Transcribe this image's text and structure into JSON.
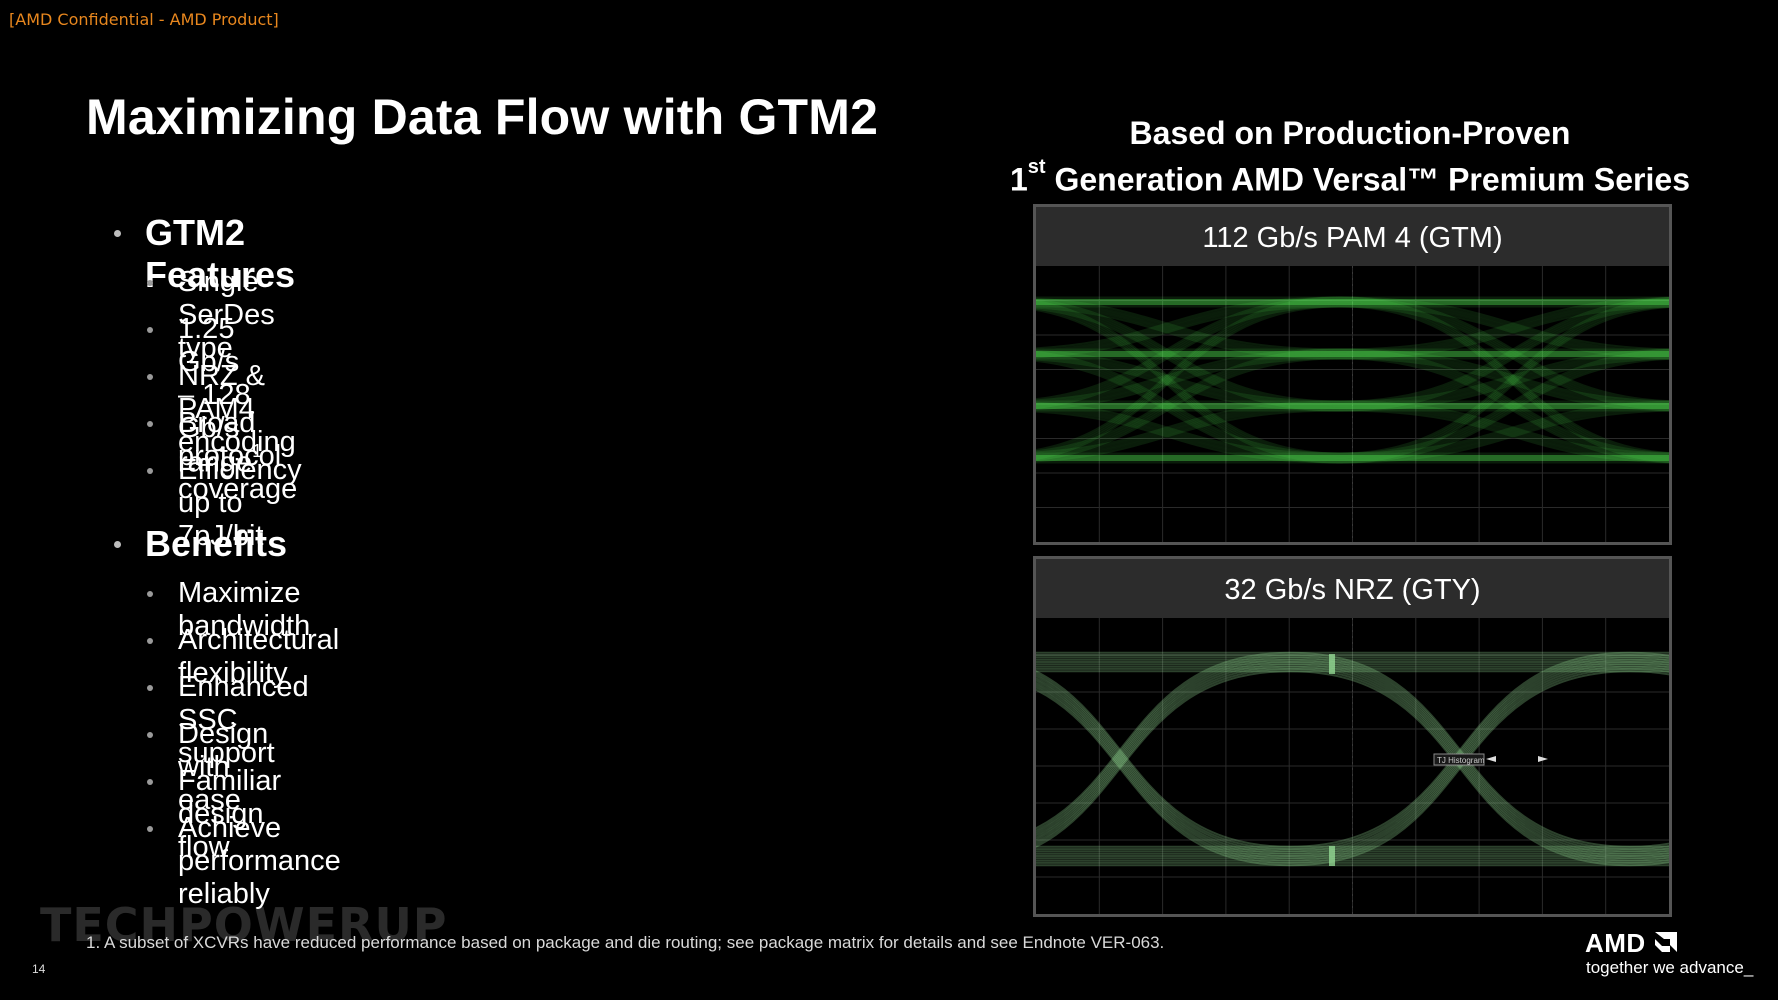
{
  "header": {
    "confidential": "[AMD Confidential - AMD Product]"
  },
  "slide": {
    "title": "Maximizing Data Flow with GTM2",
    "page_number": "14"
  },
  "left": {
    "sections": [
      {
        "heading": "GTM2 Features",
        "items": [
          "Single SerDes type",
          "1.25 Gb/s – 128 Gb/s range",
          "NRZ & PAM4 encoding",
          "Broad protocol coverage",
          "Efficiency up to 7pJ/bit"
        ],
        "range_superscript": "1"
      },
      {
        "heading": "Benefits",
        "items": [
          "Maximize bandwidth",
          "Architectural flexibility",
          "Enhanced SSC support",
          "Design with ease",
          "Familiar design flow",
          "Achieve performance reliably"
        ]
      }
    ]
  },
  "right": {
    "title_line1": "Based on Production-Proven",
    "title_line2_prefix": "1",
    "title_line2_sup": "st",
    "title_line2_rest": " Generation AMD Versal™ Premium Series",
    "panels": [
      {
        "label": "112 Gb/s PAM 4  (GTM)",
        "trace_color": "#5dff5d"
      },
      {
        "label": "32 Gb/s NRZ (GTY)",
        "trace_color": "#9ee89e",
        "marker_text": "TJ Histogram"
      }
    ]
  },
  "footer": {
    "footnote": "1. A subset of XCVRs have reduced performance based on package and die routing; see package matrix for details and see Endnote VER-063.",
    "logo_text": "AMD",
    "tagline": "together we advance_",
    "watermark": "TECHPOWERUP"
  }
}
